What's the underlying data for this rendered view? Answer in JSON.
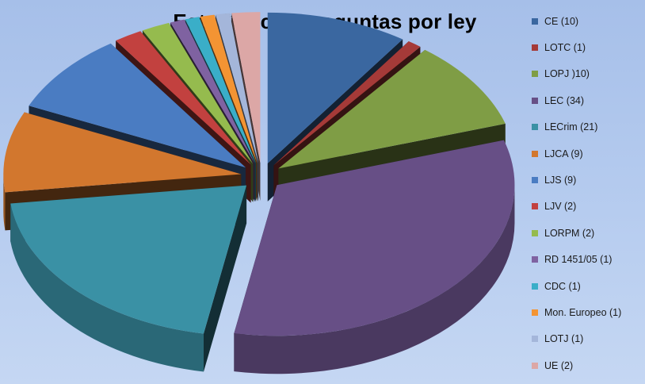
{
  "chart_data": {
    "type": "pie",
    "title": "Estadísticas preguntas por ley",
    "legend_position": "right",
    "three_d": true,
    "slices": [
      {
        "label": "CE (10)",
        "value": 10,
        "color": "#3a67a0"
      },
      {
        "label": "LOTC (1)",
        "value": 1,
        "color": "#a53a38"
      },
      {
        "label": "LOPJ )10)",
        "value": 10,
        "color": "#7f9d45"
      },
      {
        "label": "LEC (34)",
        "value": 34,
        "color": "#674f86"
      },
      {
        "label": "LECrim (21)",
        "value": 21,
        "color": "#3a91a5"
      },
      {
        "label": "LJCA (9)",
        "value": 9,
        "color": "#d2772e"
      },
      {
        "label": "LJS (9)",
        "value": 9,
        "color": "#4a7cc2"
      },
      {
        "label": "LJV (2)",
        "value": 2,
        "color": "#c2413f"
      },
      {
        "label": "LORPM (2)",
        "value": 2,
        "color": "#95bb4e"
      },
      {
        "label": "RD 1451/05  (1)",
        "value": 1,
        "color": "#7f62a1"
      },
      {
        "label": "CDC (1)",
        "value": 1,
        "color": "#3aaec8"
      },
      {
        "label": "Mon. Europeo (1)",
        "value": 1,
        "color": "#f39433"
      },
      {
        "label": "LOTJ (1)",
        "value": 1,
        "color": "#a4b6da"
      },
      {
        "label": "UE (2)",
        "value": 2,
        "color": "#dca7a6"
      }
    ]
  }
}
